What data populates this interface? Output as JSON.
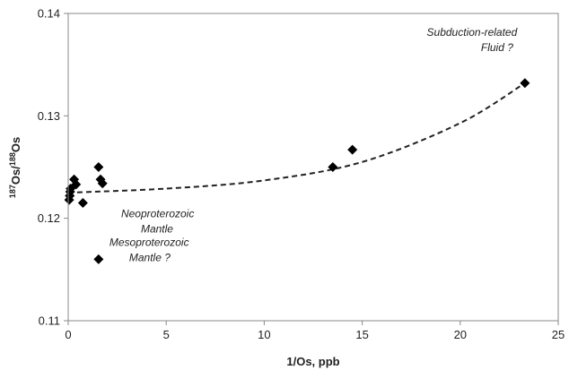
{
  "chart_data": {
    "type": "scatter",
    "title": "",
    "xlabel": "1/Os, ppb",
    "ylabel": {
      "main": "Os/",
      "sup1": "187",
      "sup2": "188",
      "tail": "Os"
    },
    "xlim": [
      0,
      25
    ],
    "ylim": [
      0.11,
      0.14
    ],
    "x_ticks": [
      0,
      5,
      10,
      15,
      20,
      25
    ],
    "y_ticks": [
      0.11,
      0.12,
      0.13,
      0.14
    ],
    "y_tick_labels": [
      "0.11",
      "0.12",
      "0.13",
      "0.14"
    ],
    "grid": false,
    "marker": "diamond",
    "marker_color": "#000000",
    "points": [
      {
        "x": 0.05,
        "y": 0.1218
      },
      {
        "x": 0.08,
        "y": 0.1222
      },
      {
        "x": 0.1,
        "y": 0.1226
      },
      {
        "x": 0.12,
        "y": 0.1229
      },
      {
        "x": 0.3,
        "y": 0.1238
      },
      {
        "x": 0.4,
        "y": 0.1233
      },
      {
        "x": 0.75,
        "y": 0.1215
      },
      {
        "x": 1.55,
        "y": 0.125
      },
      {
        "x": 1.65,
        "y": 0.1238
      },
      {
        "x": 1.75,
        "y": 0.1234
      },
      {
        "x": 1.55,
        "y": 0.116
      },
      {
        "x": 13.5,
        "y": 0.125
      },
      {
        "x": 14.5,
        "y": 0.1267
      },
      {
        "x": 23.3,
        "y": 0.1332
      }
    ],
    "trend_curve": {
      "style": "dashed",
      "points": [
        {
          "x": 0,
          "y": 0.1225
        },
        {
          "x": 5,
          "y": 0.1229
        },
        {
          "x": 10,
          "y": 0.1237
        },
        {
          "x": 15,
          "y": 0.1255
        },
        {
          "x": 20,
          "y": 0.1293
        },
        {
          "x": 23.3,
          "y": 0.1332
        }
      ]
    },
    "annotations": [
      {
        "id": "subduction",
        "lines": [
          "Subduction-related",
          "Fluid ?"
        ]
      },
      {
        "id": "neoproterozoic",
        "lines": [
          "Neoproterozoic",
          "Mantle"
        ]
      },
      {
        "id": "mesoproterozoic",
        "lines": [
          "Mesoproterozoic",
          "Mantle ?"
        ]
      }
    ]
  }
}
